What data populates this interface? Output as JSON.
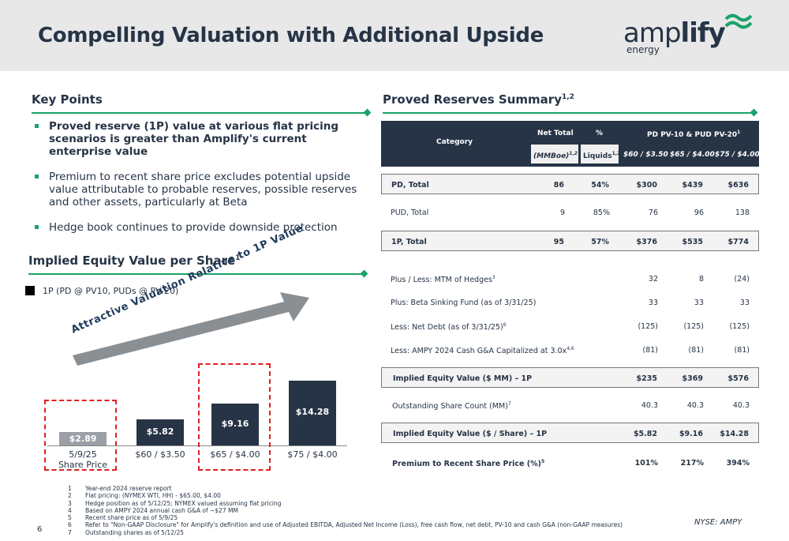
{
  "header": {
    "title": "Compelling Valuation with Additional Upside",
    "logo_word_light": "amp",
    "logo_word_bold": "lify",
    "logo_sub": "energy"
  },
  "key_points": {
    "title": "Key Points",
    "bullets": [
      "Proved reserve (1P) value at various flat pricing scenarios is greater than Amplify's current enterprise value",
      "Premium to recent share price excludes potential upside value attributable to probable reserves, possible reserves and other assets, particularly at Beta",
      "Hedge book continues to provide downside protection"
    ]
  },
  "equity_chart": {
    "title": "Implied Equity Value per Share",
    "title_sup": "1",
    "legend": "1P (PD @ PV10, PUDs @ PV-20)",
    "arrow_text": "Attractive Valuation Relative to 1P Value"
  },
  "chart_data": {
    "type": "bar",
    "categories": [
      "5/9/25 Share Price",
      "$60 / $3.50",
      "$65 / $4.00",
      "$75 / $4.00"
    ],
    "category_lines": [
      [
        "5/9/25",
        "Share Price"
      ],
      [
        "$60 / $3.50"
      ],
      [
        "$65 / $4.00"
      ],
      [
        "$75 / $4.00"
      ]
    ],
    "values": [
      2.89,
      5.82,
      9.16,
      14.28
    ],
    "value_labels": [
      "$2.89",
      "$5.82",
      "$9.16",
      "$14.28"
    ],
    "ylim": [
      0,
      14.28
    ],
    "highlighted": [
      0,
      2
    ],
    "colors": {
      "first_bar": "#9aa0a6",
      "other_bars": "#263446",
      "highlight_box": "#e02020"
    }
  },
  "reserves": {
    "title": "Proved Reserves Summary",
    "title_sup": "1,2",
    "headers": {
      "category": "Category",
      "net_total": "Net Total",
      "pct": "%",
      "pv": "PD PV-10 & PUD PV-20",
      "pv_sup": "1",
      "mmboe": "(MMBoe)",
      "mmboe_sup": "1,2",
      "liquids": "Liquids",
      "liquids_sup": "1,2",
      "p1": "$60 / $3.50",
      "p2": "$65 / $4.00",
      "p3": "$75 / $4.00"
    },
    "rows": [
      {
        "label": "PD, Total",
        "sup": "",
        "net": "86",
        "pct": "54%",
        "v1": "$300",
        "v2": "$439",
        "v3": "$636"
      },
      {
        "label": "PUD, Total",
        "sup": "",
        "net": "9",
        "pct": "85%",
        "v1": "76",
        "v2": "96",
        "v3": "138"
      },
      {
        "label": "1P, Total",
        "sup": "",
        "net": "95",
        "pct": "57%",
        "v1": "$376",
        "v2": "$535",
        "v3": "$774"
      },
      {
        "label": "Plus / Less: MTM of Hedges",
        "sup": "3",
        "net": "",
        "pct": "",
        "v1": "32",
        "v2": "8",
        "v3": "(24)"
      },
      {
        "label": "Plus: Beta Sinking Fund (as of 3/31/25)",
        "sup": "",
        "net": "",
        "pct": "",
        "v1": "33",
        "v2": "33",
        "v3": "33"
      },
      {
        "label": "Less: Net Debt (as of 3/31/25)",
        "sup": "6",
        "net": "",
        "pct": "",
        "v1": "(125)",
        "v2": "(125)",
        "v3": "(125)"
      },
      {
        "label": "Less: AMPY 2024 Cash G&A Capitalized at 3.0x",
        "sup": "4,6",
        "net": "",
        "pct": "",
        "v1": "(81)",
        "v2": "(81)",
        "v3": "(81)"
      },
      {
        "label": "Implied Equity Value ($ MM) – 1P",
        "sup": "",
        "net": "",
        "pct": "",
        "v1": "$235",
        "v2": "$369",
        "v3": "$576"
      },
      {
        "label": "Outstanding Share Count (MM)",
        "sup": "7",
        "net": "",
        "pct": "",
        "v1": "40.3",
        "v2": "40.3",
        "v3": "40.3"
      },
      {
        "label": "Implied Equity Value ($ / Share) – 1P",
        "sup": "",
        "net": "",
        "pct": "",
        "v1": "$5.82",
        "v2": "$9.16",
        "v3": "$14.28"
      },
      {
        "label": "Premium to Recent Share Price (%)",
        "sup": "5",
        "net": "",
        "pct": "",
        "v1": "101%",
        "v2": "217%",
        "v3": "394%"
      }
    ]
  },
  "footnotes": [
    {
      "n": "1",
      "text": "Year-end 2024 reserve report"
    },
    {
      "n": "2",
      "text": "Flat pricing: (NYMEX WTI, HH) - $65.00, $4.00"
    },
    {
      "n": "3",
      "text": "Hedge position as of 5/12/25; NYMEX valued assuming flat pricing"
    },
    {
      "n": "4",
      "text": "Based on AMPY 2024 annual cash G&A of ~$27 MM"
    },
    {
      "n": "5",
      "text": "Recent share price as of 5/9/25"
    },
    {
      "n": "6",
      "text": "Refer to \"Non-GAAP Disclosure\" for Amplify's definition and use of Adjusted EBITDA, Adjusted Net Income (Loss), free cash flow, net debt, PV-10 and cash G&A (non-GAAP measures)"
    },
    {
      "n": "7",
      "text": "Outstanding shares as of 5/12/25"
    }
  ],
  "footer": {
    "page": "6",
    "ticker": "NYSE: AMPY"
  }
}
